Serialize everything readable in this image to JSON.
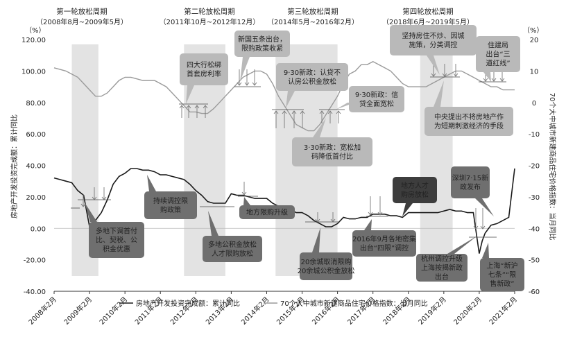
{
  "periods": [
    {
      "title": "第一轮放松周期",
      "range": "（2008年8月~2009年5月）",
      "start": "2008-08",
      "end": "2009-05"
    },
    {
      "title": "第二轮放松周期",
      "range": "（2011年10月~2012年12月）",
      "start": "2011-10",
      "end": "2012-12"
    },
    {
      "title": "第三轮放松周期",
      "range": "（2014年5月~2016年2月）",
      "start": "2014-05",
      "end": "2016-02"
    },
    {
      "title": "第四轮放松周期",
      "range": "（2018年6月~2019年5月）",
      "start": "2018-06",
      "end": "2019-05"
    }
  ],
  "colors": {
    "shade": "#e3e3e3",
    "callout_light": "#b9b9b9",
    "callout_dark": "#6f6f6f",
    "callout_darkest": "#3d3d3d",
    "investment_line": "#1a1a1a",
    "price_line": "#9a9a9a",
    "arrow": "#777777"
  },
  "chart_data": {
    "type": "line",
    "title": "",
    "x_ticks": [
      "2008年2月",
      "2009年2月",
      "2010年2月",
      "2011年2月",
      "2012年2月",
      "2013年2月",
      "2014年2月",
      "2015年2月",
      "2016年2月",
      "2017年2月",
      "2018年2月",
      "2019年2月",
      "2020年2月",
      "2021年2月"
    ],
    "left_axis": {
      "unit": "（%）",
      "label": "房地产开发投资完成额：累计同比",
      "ylim": [
        -40,
        120
      ],
      "ticks": [
        "120.00",
        "100.00",
        "80.00",
        "60.00",
        "40.00",
        "20.00",
        "0.00",
        "-20.00",
        "-40.00"
      ]
    },
    "right_axis": {
      "unit": "（%）",
      "label": "70个大中城市新建商品住宅价格指数：当月同比",
      "ylim": [
        -60,
        20
      ],
      "ticks": [
        "20",
        "10",
        "0",
        "-10",
        "-20",
        "-30",
        "-40",
        "-50",
        "-60"
      ]
    },
    "legend": {
      "placement": "bottom",
      "investment": "房地产开发投资完成额：累计同比",
      "price": "70个大中城市新建商品住宅价格指数：当月同比"
    },
    "series": [
      {
        "name": "房地产开发投资完成额：累计同比",
        "axis": "left",
        "x": [
          "2008-02",
          "2008-04",
          "2008-06",
          "2008-08",
          "2008-10",
          "2008-12",
          "2009-02",
          "2009-04",
          "2009-06",
          "2009-08",
          "2009-10",
          "2009-12",
          "2010-02",
          "2010-04",
          "2010-06",
          "2010-08",
          "2010-10",
          "2010-12",
          "2011-02",
          "2011-04",
          "2011-06",
          "2011-08",
          "2011-10",
          "2011-12",
          "2012-02",
          "2012-04",
          "2012-06",
          "2012-08",
          "2012-10",
          "2012-12",
          "2013-02",
          "2013-04",
          "2013-06",
          "2013-08",
          "2013-10",
          "2013-12",
          "2014-02",
          "2014-04",
          "2014-06",
          "2014-08",
          "2014-10",
          "2014-12",
          "2015-02",
          "2015-04",
          "2015-06",
          "2015-08",
          "2015-10",
          "2015-12",
          "2016-02",
          "2016-04",
          "2016-06",
          "2016-08",
          "2016-10",
          "2016-12",
          "2017-02",
          "2017-04",
          "2017-06",
          "2017-08",
          "2017-10",
          "2017-12",
          "2018-02",
          "2018-04",
          "2018-06",
          "2018-08",
          "2018-10",
          "2018-12",
          "2019-02",
          "2019-04",
          "2019-06",
          "2019-08",
          "2019-10",
          "2019-12",
          "2020-02",
          "2020-03",
          "2020-04",
          "2020-06",
          "2020-08",
          "2020-10",
          "2020-12",
          "2021-02"
        ],
        "values": [
          32,
          31,
          30,
          29,
          24,
          21,
          1,
          5,
          10,
          18,
          28,
          33,
          35,
          38,
          38,
          37,
          37,
          36,
          34,
          34,
          33,
          32,
          31,
          28,
          24,
          21,
          17,
          16,
          16,
          16,
          22,
          21,
          21,
          20,
          19,
          19,
          19,
          16,
          14,
          13,
          12,
          10,
          10,
          8,
          5,
          3,
          1,
          1,
          3,
          7,
          6,
          6,
          7,
          7,
          9,
          9,
          9,
          8,
          8,
          7,
          10,
          10,
          10,
          10,
          10,
          10,
          11,
          12,
          11,
          11,
          10,
          10,
          -16,
          -8,
          -3,
          2,
          3,
          5,
          7,
          38
        ]
      },
      {
        "name": "70个大中城市新建商品住宅价格指数：当月同比",
        "axis": "right",
        "x": [
          "2008-02",
          "2008-04",
          "2008-06",
          "2008-08",
          "2008-10",
          "2008-12",
          "2009-02",
          "2009-04",
          "2009-06",
          "2009-08",
          "2009-10",
          "2009-12",
          "2010-02",
          "2010-04",
          "2010-06",
          "2010-08",
          "2010-10",
          "2010-12",
          "2011-02",
          "2011-04",
          "2011-06",
          "2011-08",
          "2011-10",
          "2011-12",
          "2012-02",
          "2012-04",
          "2012-06",
          "2012-08",
          "2012-10",
          "2012-12",
          "2013-02",
          "2013-04",
          "2013-06",
          "2013-08",
          "2013-10",
          "2013-12",
          "2014-02",
          "2014-04",
          "2014-06",
          "2014-08",
          "2014-10",
          "2014-12",
          "2015-02",
          "2015-04",
          "2015-06",
          "2015-08",
          "2015-10",
          "2015-12",
          "2016-02",
          "2016-04",
          "2016-06",
          "2016-08",
          "2016-10",
          "2016-12",
          "2017-02",
          "2017-04",
          "2017-06",
          "2017-08",
          "2017-10",
          "2017-12",
          "2018-02",
          "2018-04",
          "2018-06",
          "2018-08",
          "2018-10",
          "2018-12",
          "2019-02",
          "2019-04",
          "2019-06",
          "2019-08",
          "2019-10",
          "2019-12",
          "2020-02",
          "2020-04",
          "2020-06",
          "2020-08",
          "2020-10",
          "2020-12",
          "2021-02"
        ],
        "values": [
          11,
          10.5,
          10,
          9,
          8,
          6,
          4,
          2,
          2,
          3,
          5,
          7,
          8,
          8,
          7.5,
          7,
          7,
          7,
          6,
          5,
          3,
          1,
          -1,
          -3,
          -3,
          -3.5,
          -3.5,
          -2,
          0,
          2,
          4,
          6,
          8,
          9,
          10,
          10,
          9,
          6,
          2,
          -1,
          -4,
          -7,
          -8,
          -9,
          -9,
          -7,
          -4,
          -1,
          2,
          6,
          9,
          10,
          12,
          12,
          13,
          12,
          11,
          10,
          8,
          6,
          5,
          5,
          5,
          5,
          6,
          7,
          8,
          9,
          10,
          10,
          9,
          8,
          7,
          6,
          5,
          5,
          4,
          4,
          4
        ]
      }
    ],
    "annotations": [
      {
        "id": "a1",
        "text": "多地下调首付比、契税、公积金优惠",
        "style": "dark"
      },
      {
        "id": "a2",
        "text": "四大行松绑首套房利率",
        "style": "light"
      },
      {
        "id": "a3",
        "text": "持续调控限购政策",
        "style": "dark"
      },
      {
        "id": "a4",
        "text": "新国五条出台，限购政策收紧",
        "style": "light"
      },
      {
        "id": "a5",
        "text": "多地公积金放松人才限购放松",
        "style": "dark"
      },
      {
        "id": "a6",
        "text": "地方限购升级",
        "style": "dark"
      },
      {
        "id": "a7",
        "text": "9·30新政：认贷不认房公积金放松",
        "style": "light"
      },
      {
        "id": "a8",
        "text": "3·30新政：宽松加码降低首付比",
        "style": "light"
      },
      {
        "id": "a9",
        "text": "9·30新政：信贷全面宽松",
        "style": "light"
      },
      {
        "id": "a10",
        "text": "20余城取消限购20余城公积金放松",
        "style": "dark"
      },
      {
        "id": "a11",
        "text": "2016年9月各地密集出台“四限”调控",
        "style": "dark"
      },
      {
        "id": "a12",
        "text": "地方人才购房放松",
        "style": "darkest"
      },
      {
        "id": "a13",
        "text": "坚持房住不炒、因城施策，分类调控",
        "style": "light"
      },
      {
        "id": "a14",
        "text": "中央提出不将房地产作为短期刺激经济的手段",
        "style": "light"
      },
      {
        "id": "a15",
        "text": "住建局出台“三道红线”",
        "style": "light"
      },
      {
        "id": "a16",
        "text": "深圳7·15新政发布",
        "style": "dark"
      },
      {
        "id": "a17",
        "text": "杭州调控升级上海按揭新政出台",
        "style": "dark"
      },
      {
        "id": "a18",
        "text": "上海“新沪七条”“限售新政”",
        "style": "dark"
      }
    ]
  }
}
